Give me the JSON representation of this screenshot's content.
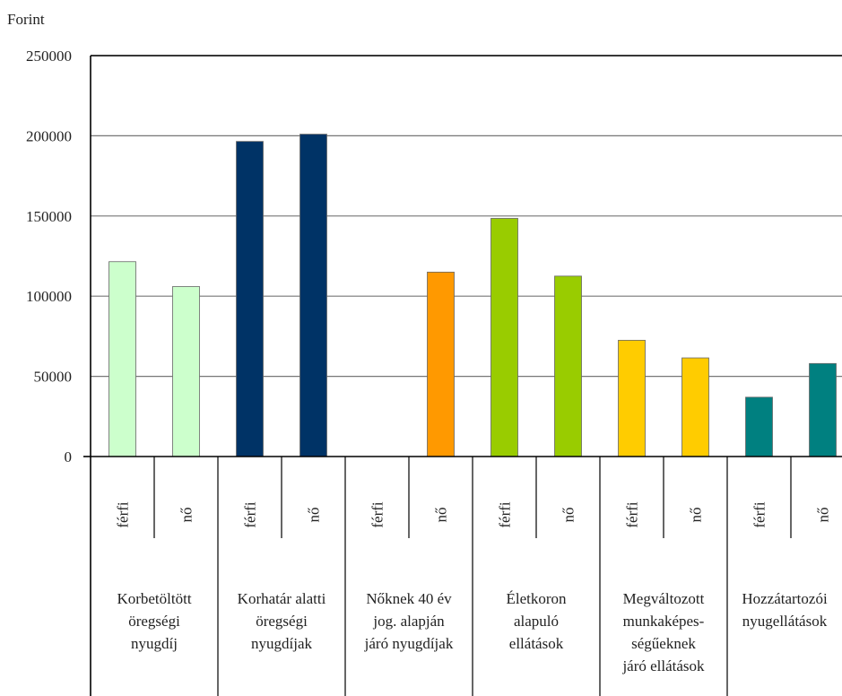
{
  "chart_data": {
    "type": "bar",
    "ylabel": "Forint",
    "ylim": [
      0,
      250000
    ],
    "yticks": [
      0,
      50000,
      100000,
      150000,
      200000,
      250000
    ],
    "grid": true,
    "groups": [
      {
        "name": "Korbetöltött öregségi nyugdíj",
        "lines": [
          "Korbetöltött",
          "öregségi",
          "nyugdíj"
        ],
        "color": "#ccffcc",
        "bars": [
          {
            "label": "férfi",
            "value": 121500
          },
          {
            "label": "nő",
            "value": 106000
          }
        ]
      },
      {
        "name": "Korhatár alatti öregségi nyugdíjak",
        "lines": [
          "Korhatár alatti",
          "öregségi",
          "nyugdíjak"
        ],
        "color": "#003366",
        "bars": [
          {
            "label": "férfi",
            "value": 196500
          },
          {
            "label": "nő",
            "value": 201000
          }
        ]
      },
      {
        "name": "Nőknek 40 év jog. alapján járó nyugdíjak",
        "lines": [
          "Nőknek 40 év",
          "jog. alapján",
          "járó nyugdíjak"
        ],
        "color": "#ff9900",
        "bars": [
          {
            "label": "férfi",
            "value": null
          },
          {
            "label": "nő",
            "value": 115000
          }
        ]
      },
      {
        "name": "Életkoron alapuló ellátások",
        "lines": [
          "Életkoron",
          "alapuló",
          "ellátások"
        ],
        "color": "#99cc00",
        "bars": [
          {
            "label": "férfi",
            "value": 148500
          },
          {
            "label": "nő",
            "value": 112500
          }
        ]
      },
      {
        "name": "Megváltozott munkaképességűeknek járó ellátások",
        "lines": [
          "Megváltozott",
          "munkaképes-",
          "ségűeknek",
          "járó ellátások"
        ],
        "color": "#ffcc00",
        "bars": [
          {
            "label": "férfi",
            "value": 72500
          },
          {
            "label": "nő",
            "value": 61500
          }
        ]
      },
      {
        "name": "Hozzátartozói nyugellátások",
        "lines": [
          "Hozzátartozói",
          "nyugellátások"
        ],
        "color": "#008080",
        "bars": [
          {
            "label": "férfi",
            "value": 37000
          },
          {
            "label": "nő",
            "value": 58000
          }
        ]
      }
    ]
  }
}
